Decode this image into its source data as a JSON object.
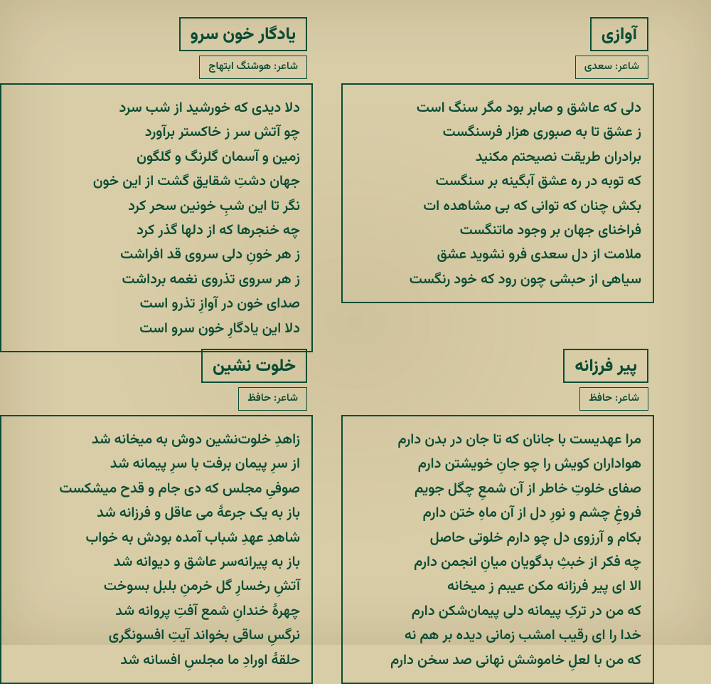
{
  "poet_label": "شاعر:",
  "poems": [
    {
      "slot": "right-top",
      "title": "آوازی",
      "poet": "سعدی",
      "lines": [
        "دلی که عاشق و صابر بود مگر سنگ است",
        "ز عشق تا به صبوری هزار فرسنگست",
        "برادران طریقت نصیحتم مکنید",
        "که توبه در ره عشق آبگینه بر سنگست",
        "بکش چنان که توانی که بی مشاهده ات",
        "فراخنای جهان بر وجود ماتنگست",
        "ملامت از دل سعدی فرو نشوید عشق",
        "سیاهی از حبشی چون رود که خود رنگست"
      ]
    },
    {
      "slot": "left-top",
      "title": "یادگار خون سرو",
      "poet": "هوشنگ ابتهاج",
      "lines": [
        "دلا دیدی که خورشید از شب سرد",
        "چو آتش سر ز خاکستر برآورد",
        "زمین و آسمان گلرنگ و گلگون",
        "جهان دشتِ شقایق گشت از این خون",
        "نگر تا این شبِ خونین سحر کرد",
        "چه خنجرها که از دلها گذر کرد",
        "ز هر خونِ دلی سروی قد افراشت",
        "ز هر سروی تذروی نغمه برداشت",
        "صدای خون در آوازِ تذرو است",
        "دلا این یادگارِ خون سرو است"
      ]
    },
    {
      "slot": "right-bottom",
      "title": "پیر فرزانه",
      "poet": "حافظ",
      "lines": [
        "مرا عهدیست با جانان که تا جان در بدن دارم",
        "هواداران کویش را چو جانِ خویشتن دارم",
        "صفای خلوتِ خاطر از آن شمعِ چگل جویم",
        "فروغِ چشم و نورِ دل از آن ماهِ ختن دارم",
        "بکام و آرزوی دل چو دارم خلوتی حاصل",
        "چه فکر از خبثِ بدگویان میانِ انجمن دارم",
        "الا ای پیر فرزانه مکن عیبم ز میخانه",
        "که من در ترکِ پیمانه دلی پیمان‌شکن دارم",
        "خدا را ای رقیب امشب زمانی دیده بر هم نه",
        "که من با لعلِ خاموشش نهانی صد سخن دارم"
      ]
    },
    {
      "slot": "left-bottom",
      "title": "خلوت نشین",
      "poet": "حافظ",
      "lines": [
        "زاهدِ خلوت‌نشین دوش به میخانه شد",
        "از سرِ پیمان برفت با سرِ پیمانه شد",
        "صوفیِ مجلس که دی جام و قدح میشکست",
        "باز به یک جرعهٔ می عاقل و فرزانه شد",
        "شاهدِ عهدِ شباب آمده بودش به خواب",
        "باز به پیرانه‌سر عاشق و دیوانه شد",
        "آتشِ رخسارِ گل خرمنِ بلبل بسوخت",
        "چهرهٔ خندانِ شمع آفتِ پروانه شد",
        "نرگسِ ساقی بخواند آیتِ افسونگری",
        "حلقهٔ اورادِ ما مجلسِ افسانه شد"
      ]
    }
  ],
  "style": {
    "background_color": "#d9cda8",
    "ink_color": "#0b4d34",
    "title_fontsize": 24,
    "author_fontsize": 15,
    "body_fontsize": 20,
    "body_line_height": 1.72,
    "border_width": 2
  }
}
